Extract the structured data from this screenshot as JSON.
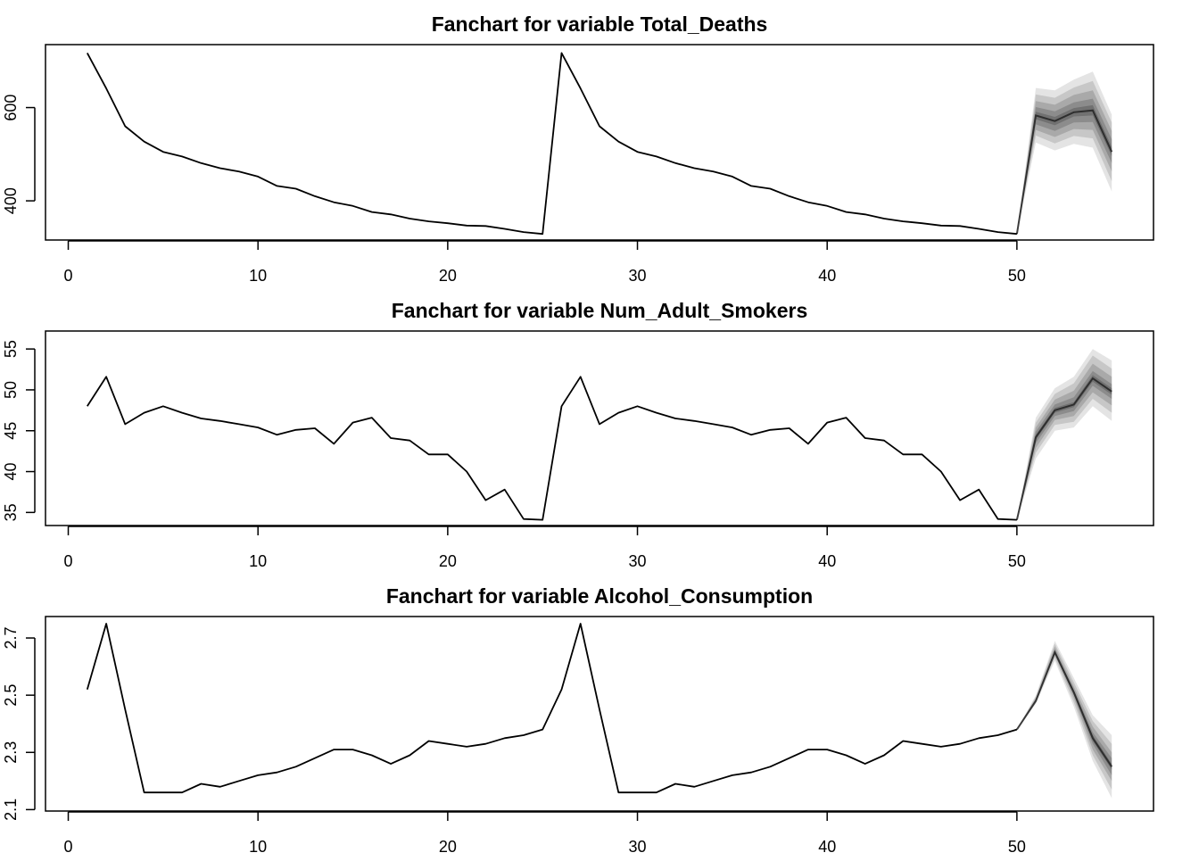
{
  "colors": {
    "line": "#000000",
    "fan": "#555555",
    "background": "#ffffff"
  },
  "chart_data": [
    {
      "type": "line",
      "title": "Fanchart for variable Total_Deaths",
      "xlabel": "",
      "ylabel": "",
      "xlim": [
        -1.2,
        57.2
      ],
      "ylim": [
        316,
        735
      ],
      "xticks": [
        0,
        10,
        20,
        30,
        40,
        50
      ],
      "yticks": [
        400,
        600
      ],
      "grid": false,
      "series": [
        {
          "x": [
            1,
            2,
            3,
            4,
            5,
            6,
            7,
            8,
            9,
            10,
            11,
            12,
            13,
            14,
            15,
            16,
            17,
            18,
            19,
            20,
            21,
            22,
            23,
            24,
            25,
            26,
            27,
            28,
            29,
            30,
            31,
            32,
            33,
            34,
            35,
            36,
            37,
            38,
            39,
            40,
            41,
            42,
            43,
            44,
            45,
            46,
            47,
            48,
            49,
            50
          ],
          "values": [
            717,
            641,
            560,
            527,
            505,
            495,
            481,
            470,
            463,
            452,
            432,
            426,
            410,
            397,
            389,
            376,
            371,
            362,
            356,
            352,
            347,
            346,
            340,
            333,
            329,
            717,
            641,
            560,
            527,
            505,
            495,
            481,
            470,
            463,
            452,
            432,
            426,
            410,
            397,
            389,
            376,
            371,
            362,
            356,
            352,
            347,
            346,
            340,
            333,
            329
          ]
        }
      ],
      "forecast": {
        "x": [
          50,
          51,
          52,
          53,
          54,
          55
        ],
        "median": [
          329,
          583,
          571,
          590,
          594,
          505
        ],
        "bands": [
          {
            "lower": [
              329,
              525,
              508,
              522,
              514,
              420
            ],
            "upper": [
              329,
              642,
              637,
              660,
              677,
              585
            ]
          },
          {
            "lower": [
              329,
              540,
              523,
              539,
              534,
              442
            ],
            "upper": [
              329,
              628,
              621,
              643,
              657,
              568
            ]
          },
          {
            "lower": [
              329,
              552,
              537,
              554,
              552,
              463
            ],
            "upper": [
              329,
              614,
              606,
              627,
              637,
              550
            ]
          },
          {
            "lower": [
              329,
              564,
              550,
              568,
              569,
              481
            ],
            "upper": [
              329,
              601,
              592,
              611,
              619,
              532
            ]
          },
          {
            "lower": [
              329,
              575,
              562,
              581,
              583,
              496
            ],
            "upper": [
              329,
              591,
              580,
              599,
              605,
              516
            ]
          }
        ]
      }
    },
    {
      "type": "line",
      "title": "Fanchart for variable Num_Adult_Smokers",
      "xlabel": "",
      "ylabel": "",
      "xlim": [
        -1.2,
        57.2
      ],
      "ylim": [
        33.4,
        57.2
      ],
      "xticks": [
        0,
        10,
        20,
        30,
        40,
        50
      ],
      "yticks": [
        35,
        40,
        45,
        50,
        55
      ],
      "grid": false,
      "series": [
        {
          "x": [
            1,
            2,
            3,
            4,
            5,
            6,
            7,
            8,
            9,
            10,
            11,
            12,
            13,
            14,
            15,
            16,
            17,
            18,
            19,
            20,
            21,
            22,
            23,
            24,
            25,
            26,
            27,
            28,
            29,
            30,
            31,
            32,
            33,
            34,
            35,
            36,
            37,
            38,
            39,
            40,
            41,
            42,
            43,
            44,
            45,
            46,
            47,
            48,
            49,
            50
          ],
          "values": [
            48.0,
            51.6,
            45.8,
            47.2,
            48.0,
            47.2,
            46.5,
            46.2,
            45.8,
            45.4,
            44.5,
            45.1,
            45.3,
            43.4,
            46.0,
            46.6,
            44.1,
            43.8,
            42.1,
            42.1,
            40.0,
            36.5,
            37.8,
            34.2,
            34.1,
            48.0,
            51.6,
            45.8,
            47.2,
            48.0,
            47.2,
            46.5,
            46.2,
            45.8,
            45.4,
            44.5,
            45.1,
            45.3,
            43.4,
            46.0,
            46.6,
            44.1,
            43.8,
            42.1,
            42.1,
            40.0,
            36.5,
            37.8,
            34.2,
            34.1
          ]
        }
      ],
      "forecast": {
        "x": [
          50,
          51,
          52,
          53,
          54,
          55
        ],
        "median": [
          34.1,
          44.2,
          47.5,
          48.2,
          51.4,
          49.8
        ],
        "bands": [
          {
            "lower": [
              34.1,
              41.6,
              45.0,
              45.4,
              48.0,
              46.2
            ],
            "upper": [
              34.1,
              46.6,
              50.2,
              51.6,
              55.0,
              53.6
            ]
          },
          {
            "lower": [
              34.1,
              42.3,
              45.7,
              46.1,
              48.9,
              47.2
            ],
            "upper": [
              34.1,
              46.0,
              49.5,
              50.8,
              54.2,
              52.6
            ]
          },
          {
            "lower": [
              34.1,
              42.9,
              46.3,
              46.8,
              49.7,
              48.1
            ],
            "upper": [
              34.1,
              45.4,
              48.8,
              49.9,
              53.2,
              51.6
            ]
          },
          {
            "lower": [
              34.1,
              43.5,
              46.8,
              47.4,
              50.5,
              48.9
            ],
            "upper": [
              34.1,
              44.9,
              48.2,
              49.1,
              52.3,
              50.7
            ]
          },
          {
            "lower": [
              34.1,
              43.9,
              47.2,
              47.9,
              51.0,
              49.4
            ],
            "upper": [
              34.1,
              44.5,
              47.8,
              48.5,
              51.8,
              50.2
            ]
          }
        ]
      }
    },
    {
      "type": "line",
      "title": "Fanchart for variable Alcohol_Consumption",
      "xlabel": "",
      "ylabel": "",
      "xlim": [
        -1.2,
        57.2
      ],
      "ylim": [
        2.095,
        2.775
      ],
      "xticks": [
        0,
        10,
        20,
        30,
        40,
        50
      ],
      "yticks": [
        2.1,
        2.3,
        2.5,
        2.7
      ],
      "grid": false,
      "series": [
        {
          "x": [
            1,
            2,
            3,
            4,
            5,
            6,
            7,
            8,
            9,
            10,
            11,
            12,
            13,
            14,
            15,
            16,
            17,
            18,
            19,
            20,
            21,
            22,
            23,
            24,
            25,
            26,
            27,
            28,
            29,
            30,
            31,
            32,
            33,
            34,
            35,
            36,
            37,
            38,
            39,
            40,
            41,
            42,
            43,
            44,
            45,
            46,
            47,
            48,
            49,
            50
          ],
          "values": [
            2.52,
            2.75,
            2.45,
            2.16,
            2.16,
            2.16,
            2.19,
            2.18,
            2.2,
            2.22,
            2.23,
            2.25,
            2.28,
            2.31,
            2.31,
            2.29,
            2.26,
            2.29,
            2.34,
            2.33,
            2.32,
            2.33,
            2.35,
            2.36,
            2.38,
            2.52,
            2.75,
            2.45,
            2.16,
            2.16,
            2.16,
            2.19,
            2.18,
            2.2,
            2.22,
            2.23,
            2.25,
            2.28,
            2.31,
            2.31,
            2.29,
            2.26,
            2.29,
            2.34,
            2.33,
            2.32,
            2.33,
            2.35,
            2.36,
            2.38
          ]
        }
      ],
      "forecast": {
        "x": [
          50,
          51,
          52,
          53,
          54,
          55
        ],
        "median": [
          2.38,
          2.48,
          2.65,
          2.51,
          2.35,
          2.25
        ],
        "bands": [
          {
            "lower": [
              2.38,
              2.47,
              2.62,
              2.46,
              2.27,
              2.14
            ],
            "upper": [
              2.38,
              2.5,
              2.69,
              2.56,
              2.43,
              2.36
            ]
          },
          {
            "lower": [
              2.38,
              2.475,
              2.63,
              2.475,
              2.29,
              2.17
            ],
            "upper": [
              2.38,
              2.495,
              2.68,
              2.545,
              2.41,
              2.33
            ]
          },
          {
            "lower": [
              2.38,
              2.478,
              2.64,
              2.49,
              2.31,
              2.2
            ],
            "upper": [
              2.38,
              2.49,
              2.67,
              2.53,
              2.39,
              2.3
            ]
          },
          {
            "lower": [
              2.38,
              2.48,
              2.645,
              2.5,
              2.33,
              2.22
            ],
            "upper": [
              2.38,
              2.485,
              2.66,
              2.52,
              2.37,
              2.28
            ]
          },
          {
            "lower": [
              2.38,
              2.48,
              2.648,
              2.505,
              2.34,
              2.24
            ],
            "upper": [
              2.38,
              2.482,
              2.655,
              2.515,
              2.36,
              2.26
            ]
          }
        ]
      }
    }
  ]
}
